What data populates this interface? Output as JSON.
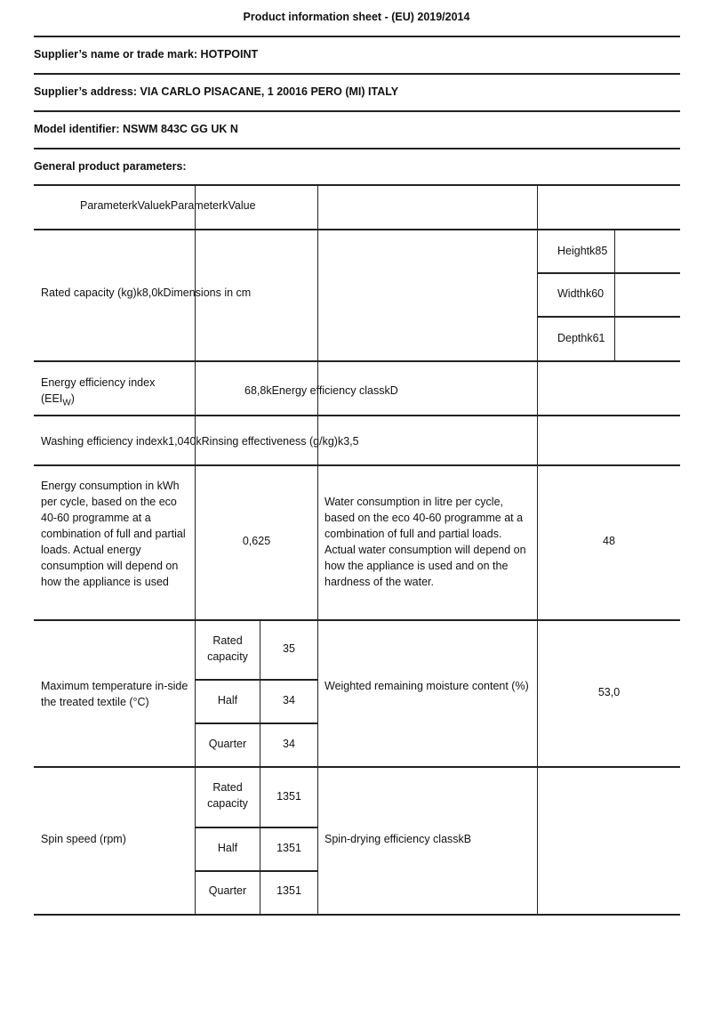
{
  "title": "Product information sheet - (EU) 2019/2014",
  "supplier_name": "Supplier’s name or trade mark: HOTPOINT",
  "supplier_address": "Supplier’s address: VIA CARLO PISACANE, 1 20016 PERO (MI) ITALY",
  "model": "Model identifier: NSWM 843C GG UK N",
  "general": "General product parameters:",
  "table": {
    "header": "ParameterkValuekParameterkValue",
    "rated_capacity_row": "Rated capacity (kg)k8,0kDimensions in cm",
    "dims": [
      "Heightk85",
      "Widthk60",
      "Depthk61"
    ],
    "eei_label": "Energy efficiency index (EEI",
    "eei_sub": "W",
    "eei_close": ")",
    "eei_value": "68,8kEnergy efficiency classkD",
    "washing_row": "Washing efficiency indexk1,040kRinsing effectiveness (g/kg)k3,5",
    "energy_label": "Energy consumption in kWh per cycle, based on the eco 40-60 programme at a combination of full and partial loads. Actual energy consumption will depend on how the appliance is used",
    "energy_value": "0,625",
    "water_label": "Water consumption in litre per cycle, based on the eco 40-60 programme at a combination of full and partial loads. Actual water consumption will depend on how the appliance is used and on the hardness of the water.",
    "water_value": "48",
    "temp_label": "Maximum temperature in-side the treated textile (°C)",
    "temp_rows": [
      {
        "label": "Rated capacity",
        "value": "35"
      },
      {
        "label": "Half",
        "value": "34"
      },
      {
        "label": "Quarter",
        "value": "34"
      }
    ],
    "moisture_label": "Weighted remaining moisture content (%)",
    "moisture_value": "53,0",
    "spin_label": "Spin speed (rpm)",
    "spin_rows": [
      {
        "label": "Rated capacity",
        "value": "1351"
      },
      {
        "label": "Half",
        "value": "1351"
      },
      {
        "label": "Quarter",
        "value": "1351"
      }
    ],
    "spin_class": "Spin-drying efficiency classkB"
  }
}
